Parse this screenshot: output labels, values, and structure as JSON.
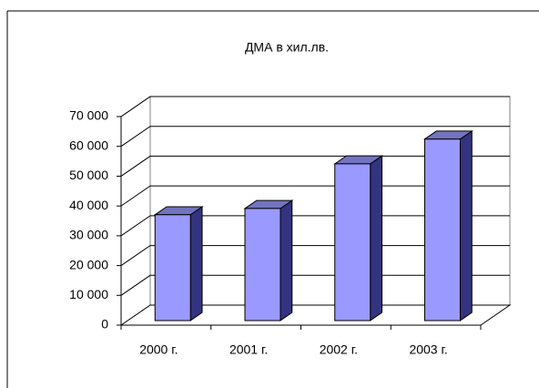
{
  "chart_data": {
    "type": "bar3d",
    "title": "ДМА в хил.лв.",
    "categories": [
      "2000 г.",
      "2001 г.",
      "2002 г.",
      "2003 г."
    ],
    "values": [
      35500,
      37600,
      52600,
      60900
    ],
    "color": "#9999ff",
    "ylim": [
      0,
      70000
    ],
    "yticks": [
      0,
      {
        "value": 10000,
        "label": "10 000"
      },
      {
        "value": 20000,
        "label": "20 000"
      },
      {
        "value": 30000,
        "label": "30 000"
      },
      {
        "value": 40000,
        "label": "40 000"
      },
      {
        "value": 50000,
        "label": "50 000"
      },
      {
        "value": 60000,
        "label": "60 000"
      },
      {
        "value": 70000,
        "label": "70 000"
      }
    ],
    "grid": true
  }
}
